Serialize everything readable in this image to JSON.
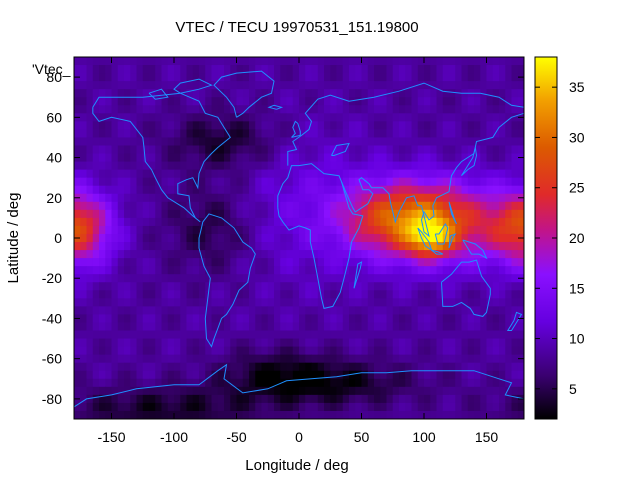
{
  "chart_data": {
    "type": "heatmap",
    "title": "VTEC / TECU 19970531_151.19800",
    "xlabel": "Longitude / deg",
    "ylabel": "Latitude / deg",
    "series_label": "'Vtec_",
    "xlim": [
      -180,
      180
    ],
    "ylim": [
      -90,
      90
    ],
    "x_ticks": [
      -150,
      -100,
      -50,
      0,
      50,
      100,
      150
    ],
    "y_ticks": [
      -80,
      -60,
      -40,
      -20,
      0,
      20,
      40,
      60,
      80
    ],
    "colorbar": {
      "min": 2,
      "max": 38,
      "ticks": [
        5,
        10,
        15,
        20,
        25,
        30,
        35
      ]
    },
    "colormap": "black-blue-purple-red-orange-yellow",
    "coastline_color": "#1e90ff",
    "features": [
      {
        "name": "equatorial anomaly Pacific",
        "lon": -170,
        "lat": 5,
        "vtec": 27
      },
      {
        "name": "equatorial anomaly Asia",
        "lon": 110,
        "lat": 10,
        "vtec": 30
      },
      {
        "name": "maximum",
        "lon": 108,
        "lat": 2,
        "vtec": 37
      },
      {
        "name": "Antarctic minimum",
        "lon": 20,
        "lat": -70,
        "vtec": 2
      },
      {
        "name": "north Atlantic minimum",
        "lon": -60,
        "lat": 50,
        "vtec": 4
      }
    ]
  }
}
